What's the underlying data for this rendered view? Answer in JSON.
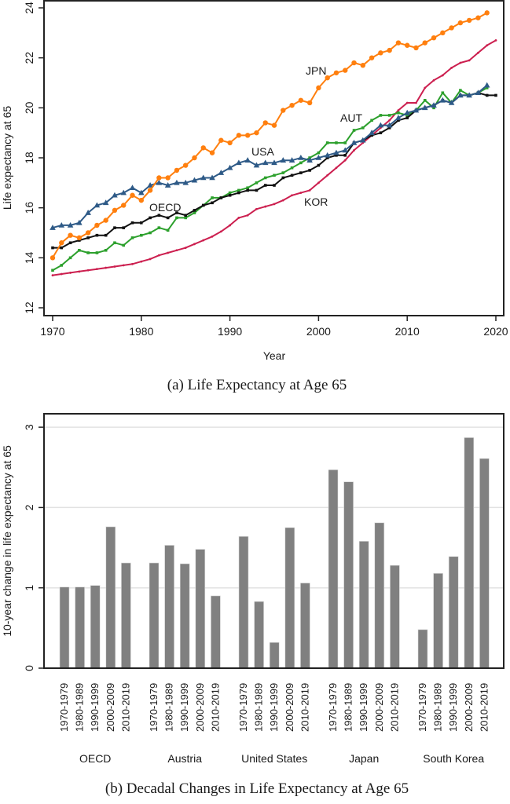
{
  "chart_data": [
    {
      "type": "line",
      "title": "",
      "caption": "(a) Life Expectancy at Age 65",
      "xlabel": "Year",
      "ylabel": "Life expectancy at 65",
      "xlim": [
        1970,
        2020
      ],
      "ylim": [
        12,
        24
      ],
      "xticks": [
        "1970",
        "1980",
        "1990",
        "2000",
        "2010",
        "2020"
      ],
      "yticks": [
        "12",
        "14",
        "16",
        "18",
        "20",
        "22",
        "24"
      ],
      "grid": false,
      "legend": "inline labels",
      "series": [
        {
          "name": "JPN",
          "label": "JPN",
          "color": "#ff7f0e",
          "marker": "circle",
          "x": [
            1970,
            1971,
            1972,
            1973,
            1974,
            1975,
            1976,
            1977,
            1978,
            1979,
            1980,
            1981,
            1982,
            1983,
            1984,
            1985,
            1986,
            1987,
            1988,
            1989,
            1990,
            1991,
            1992,
            1993,
            1994,
            1995,
            1996,
            1997,
            1998,
            1999,
            2000,
            2001,
            2002,
            2003,
            2004,
            2005,
            2006,
            2007,
            2008,
            2009,
            2010,
            2011,
            2012,
            2013,
            2014,
            2015,
            2016,
            2017,
            2018,
            2019
          ],
          "y": [
            14.0,
            14.6,
            14.9,
            14.8,
            15.0,
            15.3,
            15.5,
            15.9,
            16.1,
            16.5,
            16.3,
            16.7,
            17.2,
            17.2,
            17.5,
            17.7,
            18.0,
            18.4,
            18.2,
            18.7,
            18.6,
            18.9,
            18.9,
            19.0,
            19.4,
            19.3,
            19.9,
            20.1,
            20.3,
            20.2,
            20.8,
            21.2,
            21.4,
            21.5,
            21.8,
            21.7,
            22.0,
            22.2,
            22.3,
            22.6,
            22.5,
            22.4,
            22.6,
            22.8,
            23.0,
            23.2,
            23.4,
            23.5,
            23.6,
            23.8
          ]
        },
        {
          "name": "USA",
          "label": "USA",
          "color": "#2e5a87",
          "marker": "triangle",
          "x": [
            1970,
            1971,
            1972,
            1973,
            1974,
            1975,
            1976,
            1977,
            1978,
            1979,
            1980,
            1981,
            1982,
            1983,
            1984,
            1985,
            1986,
            1987,
            1988,
            1989,
            1990,
            1991,
            1992,
            1993,
            1994,
            1995,
            1996,
            1997,
            1998,
            1999,
            2000,
            2001,
            2002,
            2003,
            2004,
            2005,
            2006,
            2007,
            2008,
            2009,
            2010,
            2011,
            2012,
            2013,
            2014,
            2015,
            2016,
            2017,
            2018,
            2019
          ],
          "y": [
            15.2,
            15.3,
            15.3,
            15.4,
            15.8,
            16.1,
            16.2,
            16.5,
            16.6,
            16.8,
            16.6,
            16.9,
            17.0,
            16.9,
            17.0,
            17.0,
            17.1,
            17.2,
            17.2,
            17.4,
            17.6,
            17.8,
            17.9,
            17.7,
            17.8,
            17.8,
            17.9,
            17.9,
            18.0,
            17.9,
            18.0,
            18.1,
            18.2,
            18.3,
            18.6,
            18.7,
            19.0,
            19.3,
            19.3,
            19.6,
            19.8,
            19.9,
            20.0,
            20.1,
            20.3,
            20.2,
            20.5,
            20.5,
            20.6,
            20.9
          ]
        },
        {
          "name": "AUT",
          "label": "AUT",
          "color": "#2ca02c",
          "marker": "square",
          "x": [
            1970,
            1971,
            1972,
            1973,
            1974,
            1975,
            1976,
            1977,
            1978,
            1979,
            1980,
            1981,
            1982,
            1983,
            1984,
            1985,
            1986,
            1987,
            1988,
            1989,
            1990,
            1991,
            1992,
            1993,
            1994,
            1995,
            1996,
            1997,
            1998,
            1999,
            2000,
            2001,
            2002,
            2003,
            2004,
            2005,
            2006,
            2007,
            2008,
            2009,
            2010,
            2011,
            2012,
            2013,
            2014,
            2015,
            2016,
            2017,
            2018,
            2019
          ],
          "y": [
            13.5,
            13.7,
            14.0,
            14.3,
            14.2,
            14.2,
            14.3,
            14.6,
            14.5,
            14.8,
            14.9,
            15.0,
            15.2,
            15.1,
            15.6,
            15.6,
            15.8,
            16.1,
            16.4,
            16.4,
            16.6,
            16.7,
            16.8,
            17.0,
            17.2,
            17.3,
            17.4,
            17.6,
            17.8,
            18.0,
            18.2,
            18.6,
            18.6,
            18.6,
            19.1,
            19.2,
            19.5,
            19.7,
            19.7,
            19.8,
            19.7,
            19.9,
            20.3,
            20.0,
            20.6,
            20.2,
            20.7,
            20.5,
            20.6,
            20.8
          ]
        },
        {
          "name": "OECD",
          "label": "OECD",
          "color": "#111111",
          "marker": "square",
          "x": [
            1970,
            1971,
            1972,
            1973,
            1974,
            1975,
            1976,
            1977,
            1978,
            1979,
            1980,
            1981,
            1982,
            1983,
            1984,
            1985,
            1986,
            1987,
            1988,
            1989,
            1990,
            1991,
            1992,
            1993,
            1994,
            1995,
            1996,
            1997,
            1998,
            1999,
            2000,
            2001,
            2002,
            2003,
            2004,
            2005,
            2006,
            2007,
            2008,
            2009,
            2010,
            2011,
            2012,
            2013,
            2014,
            2015,
            2016,
            2017,
            2018,
            2019,
            2020
          ],
          "y": [
            14.4,
            14.4,
            14.6,
            14.7,
            14.8,
            14.9,
            14.9,
            15.2,
            15.2,
            15.4,
            15.4,
            15.6,
            15.7,
            15.6,
            15.8,
            15.7,
            15.9,
            16.1,
            16.2,
            16.4,
            16.5,
            16.6,
            16.7,
            16.7,
            16.9,
            16.9,
            17.2,
            17.3,
            17.4,
            17.5,
            17.7,
            18.0,
            18.1,
            18.1,
            18.6,
            18.7,
            18.9,
            19.0,
            19.2,
            19.5,
            19.6,
            19.9,
            20.0,
            20.1,
            20.3,
            20.2,
            20.5,
            20.5,
            20.6,
            20.5,
            20.5
          ]
        },
        {
          "name": "KOR",
          "label": "KOR",
          "color": "#cc1f4f",
          "marker": "dot",
          "x": [
            1970,
            1971,
            1972,
            1973,
            1974,
            1975,
            1976,
            1977,
            1978,
            1979,
            1980,
            1981,
            1982,
            1983,
            1984,
            1985,
            1986,
            1987,
            1988,
            1989,
            1990,
            1991,
            1992,
            1993,
            1994,
            1995,
            1996,
            1997,
            1998,
            1999,
            2000,
            2001,
            2002,
            2003,
            2004,
            2005,
            2006,
            2007,
            2008,
            2009,
            2010,
            2011,
            2012,
            2013,
            2014,
            2015,
            2016,
            2017,
            2018,
            2019,
            2020
          ],
          "y": [
            13.3,
            13.35,
            13.4,
            13.45,
            13.5,
            13.55,
            13.6,
            13.65,
            13.7,
            13.75,
            13.85,
            13.95,
            14.1,
            14.2,
            14.3,
            14.4,
            14.55,
            14.7,
            14.85,
            15.05,
            15.3,
            15.6,
            15.7,
            15.95,
            16.05,
            16.15,
            16.3,
            16.5,
            16.6,
            16.7,
            17.0,
            17.3,
            17.6,
            17.9,
            18.3,
            18.6,
            18.9,
            19.2,
            19.5,
            19.9,
            20.2,
            20.2,
            20.8,
            21.1,
            21.3,
            21.6,
            21.8,
            21.9,
            22.2,
            22.5,
            22.7
          ]
        }
      ]
    },
    {
      "type": "bar",
      "title": "",
      "caption": "(b) Decadal Changes in Life Expectancy at Age 65",
      "xlabel": "",
      "ylabel": "10-year change in life expectancy at 65",
      "ylim": [
        0,
        3.2
      ],
      "yticks": [
        "0",
        "1",
        "2",
        "3"
      ],
      "grid": true,
      "bar_color": "#808080",
      "categories": [
        "1970-1979",
        "1980-1989",
        "1990-1999",
        "2000-2009",
        "2010-2019"
      ],
      "groups": [
        {
          "name": "OECD",
          "values": [
            1.01,
            1.01,
            1.03,
            1.76,
            1.31
          ]
        },
        {
          "name": "Austria",
          "values": [
            1.31,
            1.53,
            1.3,
            1.48,
            0.9
          ]
        },
        {
          "name": "United States",
          "values": [
            1.64,
            0.83,
            0.32,
            1.75,
            1.06
          ]
        },
        {
          "name": "Japan",
          "values": [
            2.47,
            2.32,
            1.58,
            1.81,
            1.28
          ]
        },
        {
          "name": "South Korea",
          "values": [
            0.48,
            1.18,
            1.39,
            2.87,
            2.61
          ]
        }
      ]
    }
  ]
}
